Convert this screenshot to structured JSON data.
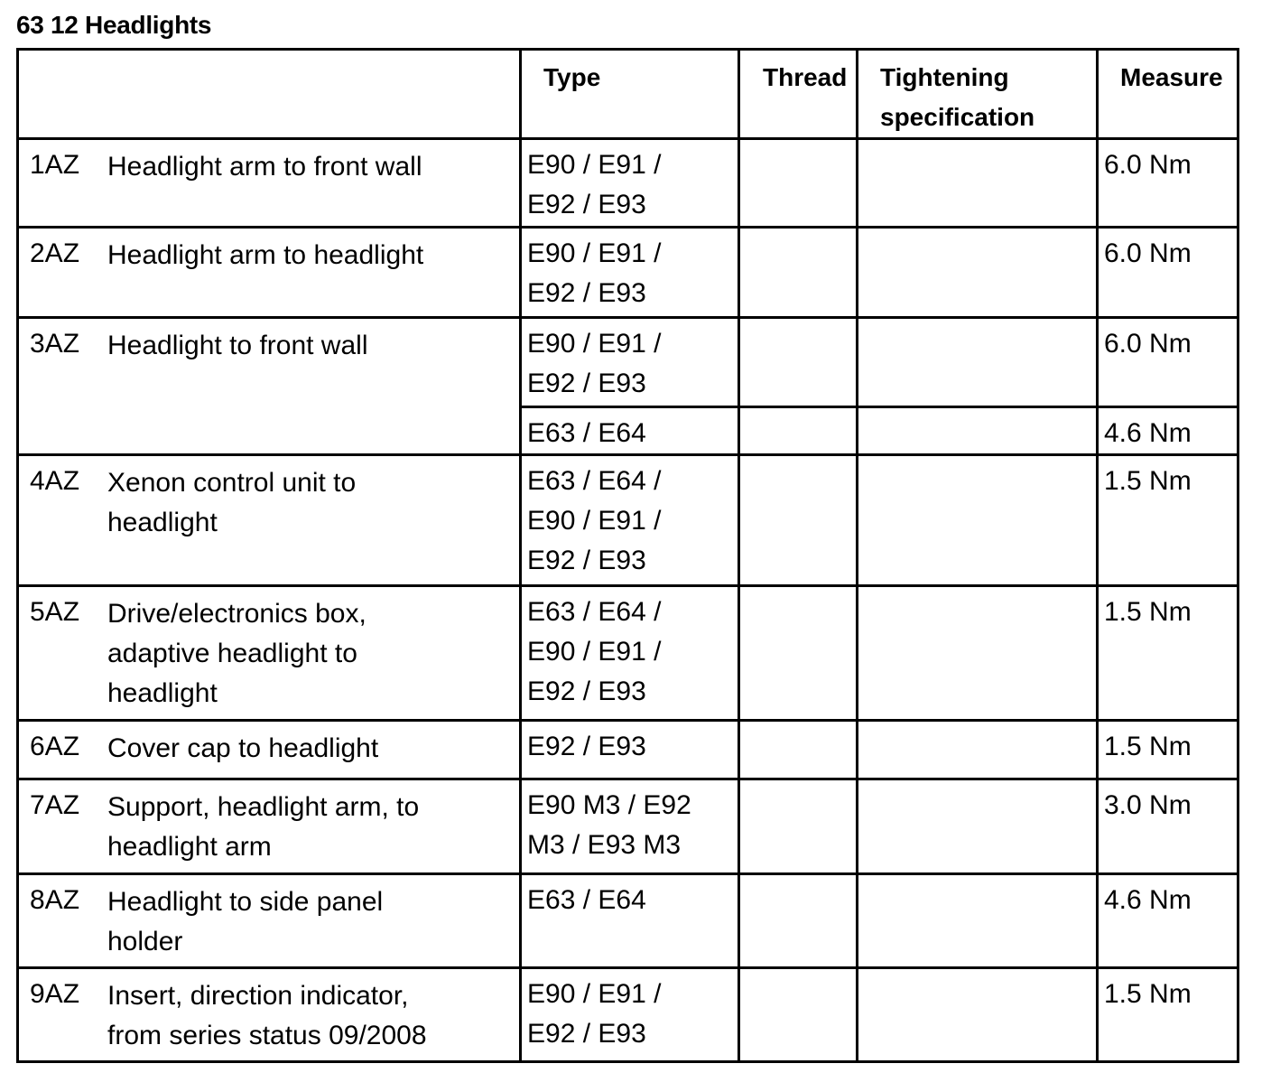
{
  "title": "63 12 Headlights",
  "headers": [
    "",
    "Type",
    "Thread",
    "Tightening\nspecification",
    "Measure"
  ],
  "rows": [
    {
      "code": "1AZ",
      "desc": "Headlight arm to front wall",
      "entries": [
        {
          "type": "E90 / E91 /\nE92 / E93",
          "thread": "",
          "spec": "",
          "measure": "6.0 Nm"
        }
      ]
    },
    {
      "code": "2AZ",
      "desc": "Headlight arm to headlight",
      "entries": [
        {
          "type": "E90 / E91 /\nE92 / E93",
          "thread": "",
          "spec": "",
          "measure": "6.0 Nm"
        }
      ]
    },
    {
      "code": "3AZ",
      "desc": "Headlight to front wall",
      "entries": [
        {
          "type": "E90 / E91 /\nE92 / E93",
          "thread": "",
          "spec": "",
          "measure": "6.0 Nm"
        },
        {
          "type": "E63 / E64",
          "thread": "",
          "spec": "",
          "measure": "4.6 Nm"
        }
      ]
    },
    {
      "code": "4AZ",
      "desc": "Xenon control unit to\nheadlight",
      "entries": [
        {
          "type": "E63 / E64 /\nE90 / E91 /\nE92 / E93",
          "thread": "",
          "spec": "",
          "measure": "1.5 Nm"
        }
      ]
    },
    {
      "code": "5AZ",
      "desc": "Drive/electronics box,\nadaptive headlight to\nheadlight",
      "entries": [
        {
          "type": "E63 / E64 /\nE90 / E91 /\nE92 / E93",
          "thread": "",
          "spec": "",
          "measure": "1.5 Nm"
        }
      ]
    },
    {
      "code": "6AZ",
      "desc": "Cover cap to headlight",
      "entries": [
        {
          "type": "E92 / E93",
          "thread": "",
          "spec": "",
          "measure": "1.5 Nm"
        }
      ]
    },
    {
      "code": "7AZ",
      "desc": "Support, headlight arm, to\nheadlight arm",
      "entries": [
        {
          "type": "E90 M3 / E92\nM3 / E93 M3",
          "thread": "",
          "spec": "",
          "measure": "3.0 Nm"
        }
      ]
    },
    {
      "code": "8AZ",
      "desc": "Headlight to side panel\nholder",
      "entries": [
        {
          "type": "E63 / E64",
          "thread": "",
          "spec": "",
          "measure": "4.6 Nm"
        }
      ]
    },
    {
      "code": "9AZ",
      "desc": "Insert, direction indicator,\nfrom series status 09/2008",
      "entries": [
        {
          "type": "E90 / E91 /\nE92 / E93",
          "thread": "",
          "spec": "",
          "measure": "1.5 Nm"
        }
      ]
    }
  ]
}
